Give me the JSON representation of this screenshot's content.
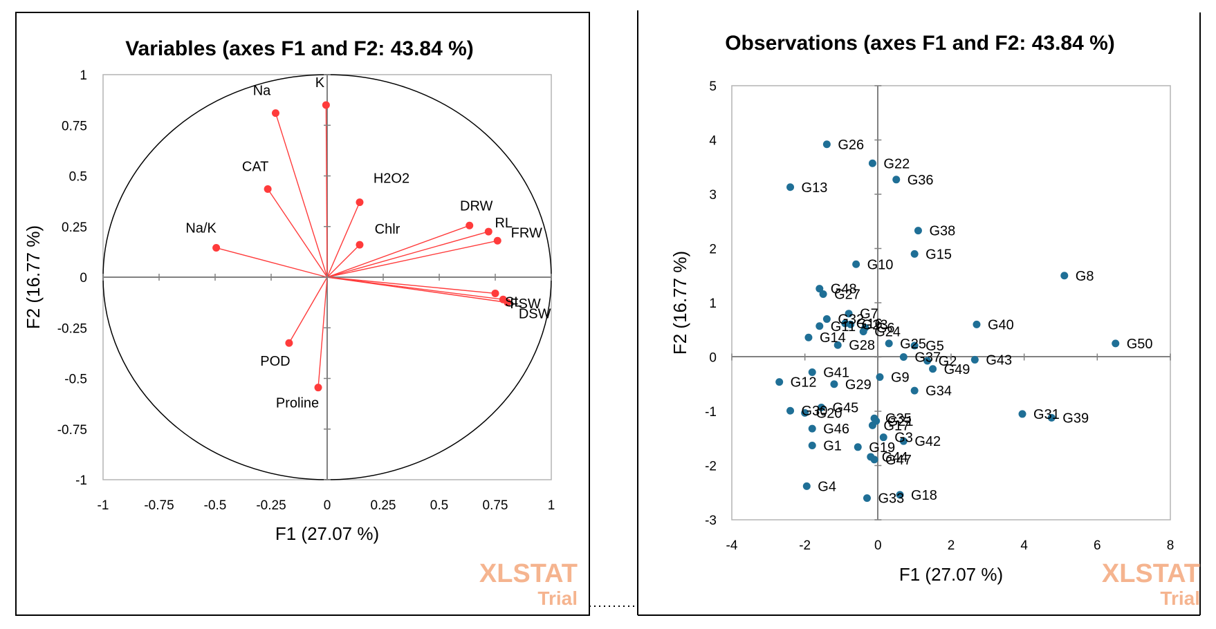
{
  "colors": {
    "variable_point": "#ff3b3b",
    "variable_vector": "#ff3b3b",
    "observation_point": "#1f6f96",
    "axis": "#000000",
    "frame": "#b4b4b4",
    "watermark": "#f5b48f"
  },
  "watermark": {
    "line1": "XLSTAT",
    "line2": "Trial"
  },
  "chart_data": [
    {
      "type": "scatter",
      "subtype": "correlation-circle",
      "title": "Variables (axes F1 and F2: 43.84 %)",
      "xlabel": "F1 (27.07 %)",
      "ylabel": "F2 (16.77 %)",
      "xlim": [
        -1,
        1
      ],
      "ylim": [
        -1,
        1
      ],
      "xticks": [
        "-1",
        "-0.75",
        "-0.5",
        "-0.25",
        "0",
        "0.25",
        "0.5",
        "0.75",
        "1"
      ],
      "yticks": [
        "-1",
        "-0.75",
        "-0.5",
        "-0.25",
        "0",
        "0.25",
        "0.5",
        "0.75",
        "1"
      ],
      "points": [
        {
          "label": "Na",
          "x": -0.23,
          "y": 0.81
        },
        {
          "label": "K",
          "x": -0.005,
          "y": 0.85
        },
        {
          "label": "CAT",
          "x": -0.265,
          "y": 0.435
        },
        {
          "label": "H2O2",
          "x": 0.145,
          "y": 0.37
        },
        {
          "label": "Chlr",
          "x": 0.145,
          "y": 0.16
        },
        {
          "label": "Na/K",
          "x": -0.495,
          "y": 0.145
        },
        {
          "label": "DRW",
          "x": 0.635,
          "y": 0.255
        },
        {
          "label": "RL",
          "x": 0.72,
          "y": 0.225
        },
        {
          "label": "FRW",
          "x": 0.76,
          "y": 0.18
        },
        {
          "label": "SL",
          "x": 0.75,
          "y": -0.08
        },
        {
          "label": "FSW",
          "x": 0.785,
          "y": -0.11
        },
        {
          "label": "DSW",
          "x": 0.805,
          "y": -0.125
        },
        {
          "label": "POD",
          "x": -0.17,
          "y": -0.325
        },
        {
          "label": "Proline",
          "x": -0.04,
          "y": -0.545
        }
      ]
    },
    {
      "type": "scatter",
      "title": "Observations (axes F1 and F2: 43.84 %)",
      "xlabel": "F1 (27.07 %)",
      "ylabel": "F2 (16.77 %)",
      "xlim": [
        -4,
        8
      ],
      "ylim": [
        -3,
        5
      ],
      "xticks": [
        "-4",
        "-2",
        "0",
        "2",
        "4",
        "6",
        "8"
      ],
      "yticks": [
        "-3",
        "-2",
        "-1",
        "0",
        "1",
        "2",
        "3",
        "4",
        "5"
      ],
      "points": [
        {
          "label": "G26",
          "x": -1.4,
          "y": 3.92
        },
        {
          "label": "G22",
          "x": -0.15,
          "y": 3.57
        },
        {
          "label": "G36",
          "x": 0.5,
          "y": 3.27
        },
        {
          "label": "G13",
          "x": -2.4,
          "y": 3.13
        },
        {
          "label": "G38",
          "x": 1.1,
          "y": 2.33
        },
        {
          "label": "G15",
          "x": 1.0,
          "y": 1.9
        },
        {
          "label": "G10",
          "x": -0.6,
          "y": 1.71
        },
        {
          "label": "G8",
          "x": 5.1,
          "y": 1.5
        },
        {
          "label": "G48",
          "x": -1.6,
          "y": 1.26
        },
        {
          "label": "G27",
          "x": -1.5,
          "y": 1.16
        },
        {
          "label": "G7",
          "x": -0.8,
          "y": 0.8
        },
        {
          "label": "G16",
          "x": -0.9,
          "y": 0.62
        },
        {
          "label": "G23",
          "x": -0.75,
          "y": 0.6
        },
        {
          "label": "G32",
          "x": -1.4,
          "y": 0.7
        },
        {
          "label": "G11",
          "x": -1.6,
          "y": 0.57
        },
        {
          "label": "G6",
          "x": -0.35,
          "y": 0.54
        },
        {
          "label": "G24",
          "x": -0.4,
          "y": 0.47
        },
        {
          "label": "G40",
          "x": 2.7,
          "y": 0.6
        },
        {
          "label": "G14",
          "x": -1.9,
          "y": 0.36
        },
        {
          "label": "G28",
          "x": -1.1,
          "y": 0.22
        },
        {
          "label": "G25",
          "x": 0.3,
          "y": 0.25
        },
        {
          "label": "G5",
          "x": 1.0,
          "y": 0.21
        },
        {
          "label": "G50",
          "x": 6.5,
          "y": 0.25
        },
        {
          "label": "G37",
          "x": 0.7,
          "y": 0.0
        },
        {
          "label": "G2",
          "x": 1.35,
          "y": -0.07
        },
        {
          "label": "G43",
          "x": 2.65,
          "y": -0.05
        },
        {
          "label": "G49",
          "x": 1.5,
          "y": -0.22
        },
        {
          "label": "G41",
          "x": -1.8,
          "y": -0.28
        },
        {
          "label": "G9",
          "x": 0.05,
          "y": -0.37
        },
        {
          "label": "G12",
          "x": -2.7,
          "y": -0.46
        },
        {
          "label": "G29",
          "x": -1.2,
          "y": -0.5
        },
        {
          "label": "G34",
          "x": 1.0,
          "y": -0.62
        },
        {
          "label": "G45",
          "x": -1.55,
          "y": -0.93
        },
        {
          "label": "G30",
          "x": -2.4,
          "y": -0.99
        },
        {
          "label": "G20",
          "x": -2.0,
          "y": -1.03
        },
        {
          "label": "G31",
          "x": 3.95,
          "y": -1.05
        },
        {
          "label": "G39",
          "x": 4.75,
          "y": -1.12
        },
        {
          "label": "G35",
          "x": -0.1,
          "y": -1.13
        },
        {
          "label": "G21",
          "x": -0.05,
          "y": -1.18
        },
        {
          "label": "G17",
          "x": -0.15,
          "y": -1.26
        },
        {
          "label": "G46",
          "x": -1.8,
          "y": -1.32
        },
        {
          "label": "G3",
          "x": 0.15,
          "y": -1.48
        },
        {
          "label": "G42",
          "x": 0.7,
          "y": -1.55
        },
        {
          "label": "G1",
          "x": -1.8,
          "y": -1.63
        },
        {
          "label": "G19",
          "x": -0.55,
          "y": -1.66
        },
        {
          "label": "G44",
          "x": -0.2,
          "y": -1.84
        },
        {
          "label": "G47",
          "x": -0.1,
          "y": -1.89
        },
        {
          "label": "G4",
          "x": -1.95,
          "y": -2.38
        },
        {
          "label": "G18",
          "x": 0.6,
          "y": -2.54
        },
        {
          "label": "G33",
          "x": -0.3,
          "y": -2.6
        }
      ]
    }
  ]
}
